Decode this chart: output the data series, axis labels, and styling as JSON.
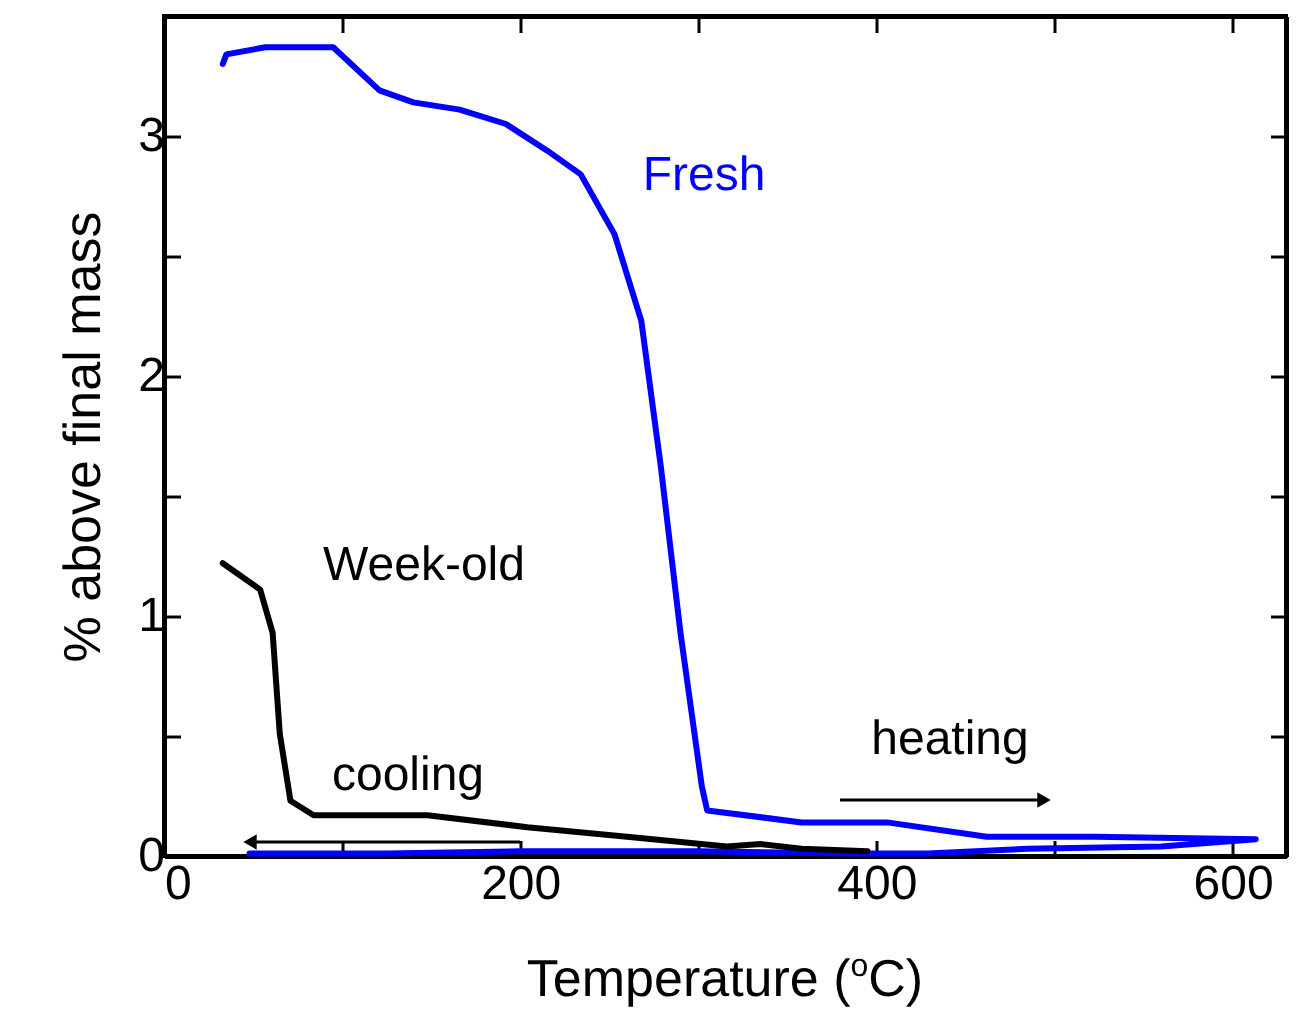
{
  "chart_data": {
    "type": "line",
    "xlabel": "Temperature ($^{o}$C)",
    "ylabel": "% above final mass",
    "xlim": [
      0,
      630
    ],
    "ylim": [
      0,
      3.5
    ],
    "xticks": [
      0,
      {
        "value": 100,
        "label": null
      },
      200,
      {
        "value": 300,
        "label": null
      },
      400,
      {
        "value": 500,
        "label": null
      },
      600
    ],
    "yticks": [
      0,
      {
        "value": 0.5,
        "label": null
      },
      1,
      {
        "value": 1.5,
        "label": null
      },
      2,
      {
        "value": 2.5,
        "label": null
      },
      3
    ],
    "grid": false,
    "line_style": "solid",
    "marker": "none",
    "series": [
      {
        "name": "Fresh",
        "color": "#0000ff",
        "x": [
          33,
          35,
          57,
          95,
          121,
          140,
          166,
          192,
          215,
          234,
          253,
          268,
          279,
          290,
          302,
          305,
          358,
          406,
          462,
          523,
          613,
          560,
          485,
          429,
          385,
          300,
          200,
          125,
          48
        ],
        "values": [
          3.3,
          3.34,
          3.37,
          3.37,
          3.19,
          3.14,
          3.11,
          3.05,
          2.94,
          2.84,
          2.59,
          2.23,
          1.62,
          0.93,
          0.29,
          0.19,
          0.14,
          0.14,
          0.08,
          0.08,
          0.07,
          0.04,
          0.03,
          0.01,
          0.01,
          0.02,
          0.02,
          0.01,
          0.01
        ]
      },
      {
        "name": "Week-old",
        "color": "#000000",
        "x": [
          33,
          54,
          61,
          65,
          71,
          84,
          148,
          204,
          260,
          316,
          335,
          358,
          395
        ],
        "values": [
          1.22,
          1.11,
          0.93,
          0.51,
          0.23,
          0.17,
          0.17,
          0.12,
          0.08,
          0.04,
          0.05,
          0.03,
          0.02
        ]
      }
    ],
    "annotations": [
      "cooling",
      "heating"
    ]
  }
}
